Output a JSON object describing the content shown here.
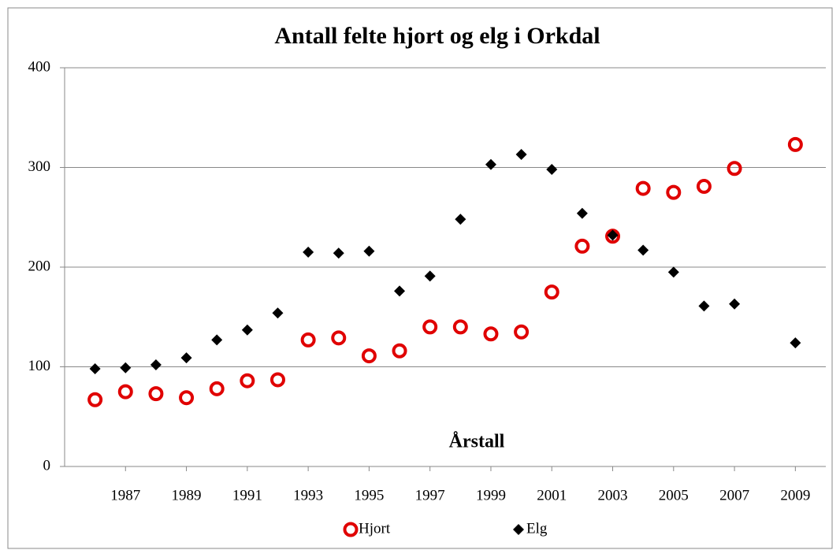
{
  "chart_data": {
    "type": "scatter",
    "title": "Antall felte hjort og elg i Orkdal",
    "x_label": "Årstall",
    "x": [
      1986,
      1987,
      1988,
      1989,
      1990,
      1991,
      1992,
      1993,
      1994,
      1995,
      1996,
      1997,
      1998,
      1999,
      2000,
      2001,
      2002,
      2003,
      2004,
      2005,
      2006,
      2007,
      2009
    ],
    "series": [
      {
        "name": "Hjort",
        "color": "#e00000",
        "marker": "circle",
        "values": [
          67,
          75,
          73,
          69,
          78,
          86,
          87,
          127,
          129,
          111,
          116,
          140,
          140,
          133,
          135,
          175,
          221,
          231,
          279,
          275,
          281,
          299,
          323
        ]
      },
      {
        "name": "Elg",
        "color": "#000000",
        "marker": "diamond",
        "values": [
          98,
          99,
          102,
          109,
          127,
          137,
          154,
          215,
          214,
          216,
          176,
          191,
          248,
          303,
          313,
          298,
          254,
          232,
          217,
          195,
          161,
          163,
          124
        ]
      }
    ],
    "xlim": [
      1985,
      2010
    ],
    "xticks": [
      1987,
      1989,
      1991,
      1993,
      1995,
      1997,
      1999,
      2001,
      2003,
      2005,
      2007,
      2009
    ],
    "ylim": [
      0,
      400
    ],
    "yticks": [
      0,
      100,
      200,
      300,
      400
    ],
    "grid": true,
    "legend": "bottom"
  }
}
